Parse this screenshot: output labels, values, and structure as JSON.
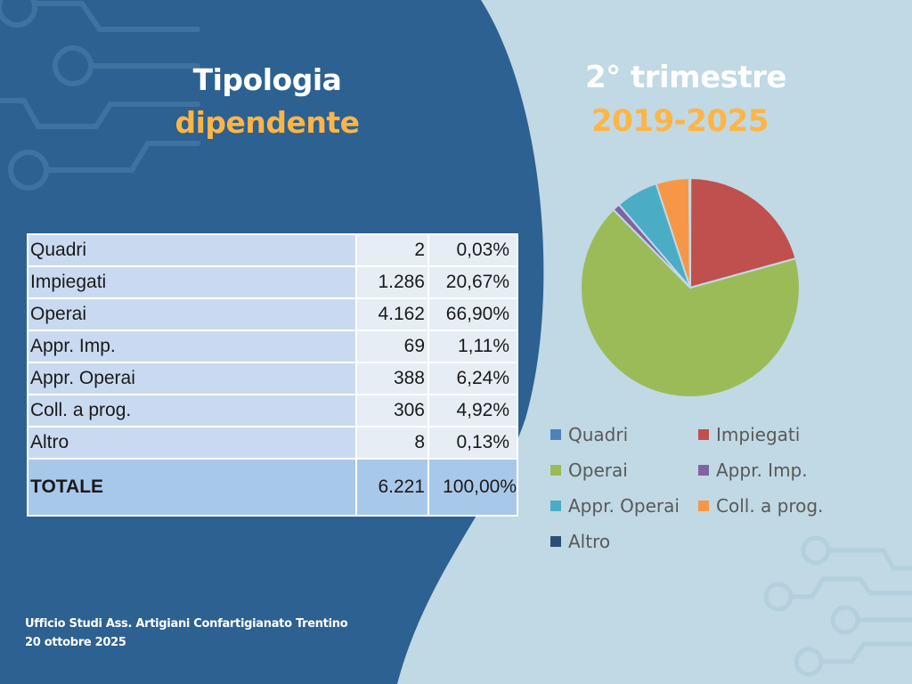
{
  "slide": {
    "title_line1": "Tipologia",
    "title_line2": "dipendente",
    "subtitle_line1": "2° trimestre",
    "subtitle_line2": "2019-2025",
    "footer_line1": "Ufficio Studi Ass. Artigiani Confartigianato Trentino",
    "footer_line2": "20 ottobre 2025",
    "colors": {
      "dark_blue": "#2c6191",
      "light_blue": "#c0d9e4",
      "accent_orange": "#ffb545",
      "white": "#ffffff"
    }
  },
  "table": {
    "rows": [
      {
        "label": "Quadri",
        "value": "2",
        "percent": "0,03%"
      },
      {
        "label": "Impiegati",
        "value": "1.286",
        "percent": "20,67%"
      },
      {
        "label": "Operai",
        "value": "4.162",
        "percent": "66,90%"
      },
      {
        "label": "Appr. Imp.",
        "value": "69",
        "percent": "1,11%"
      },
      {
        "label": "Appr. Operai",
        "value": "388",
        "percent": "6,24%"
      },
      {
        "label": "Coll. a prog.",
        "value": "306",
        "percent": "4,92%"
      },
      {
        "label": "Altro",
        "value": "8",
        "percent": "0,13%"
      }
    ],
    "total": {
      "label": "TOTALE",
      "value": "6.221",
      "percent": "100,00%"
    }
  },
  "chart_data": {
    "type": "pie",
    "title": "",
    "categories": [
      "Quadri",
      "Impiegati",
      "Operai",
      "Appr. Imp.",
      "Appr. Operai",
      "Coll. a prog.",
      "Altro"
    ],
    "values": [
      2,
      1286,
      4162,
      69,
      388,
      306,
      8
    ],
    "percentages": [
      0.03,
      20.67,
      66.9,
      1.11,
      6.24,
      4.92,
      0.13
    ],
    "colors": [
      "#4f81bd",
      "#c0504d",
      "#9bbb59",
      "#8064a2",
      "#4bacc6",
      "#f79646",
      "#2c4d75"
    ],
    "start_angle": "12 o'clock",
    "direction": "clockwise",
    "legend_position": "bottom"
  }
}
